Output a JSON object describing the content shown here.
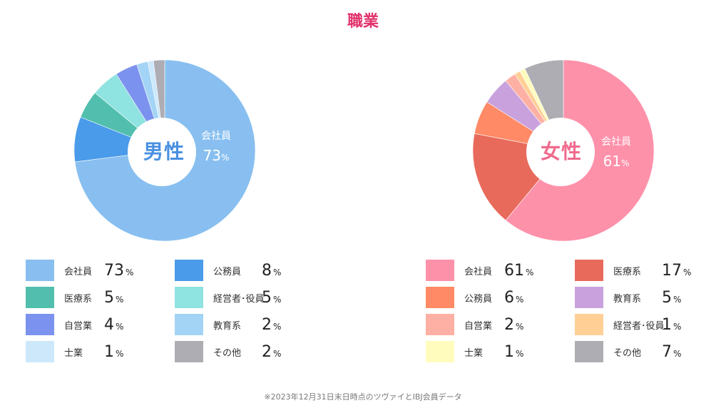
{
  "page": {
    "title": "職業",
    "footnote": "※2023年12月31日末日時点のツヴァイとIBJ会員データ"
  },
  "chart_data": [
    {
      "type": "pie",
      "center_label": "男性",
      "center_color": "#4a90e2",
      "callout": {
        "name": "会社員",
        "value": "73",
        "unit": "%"
      },
      "slices": [
        {
          "name": "会社員",
          "value": 73,
          "unit": "%",
          "color": "#88bff0"
        },
        {
          "name": "公務員",
          "value": 8,
          "unit": "%",
          "color": "#4a9bea"
        },
        {
          "name": "医療系",
          "value": 5,
          "unit": "%",
          "color": "#52bfae"
        },
        {
          "name": "経営者･役員",
          "value": 5,
          "unit": "%",
          "color": "#8fe3e0"
        },
        {
          "name": "自営業",
          "value": 4,
          "unit": "%",
          "color": "#7b92ee"
        },
        {
          "name": "教育系",
          "value": 2,
          "unit": "%",
          "color": "#a3d4f5"
        },
        {
          "name": "士業",
          "value": 1,
          "unit": "%",
          "color": "#cde8fb"
        },
        {
          "name": "その他",
          "value": 2,
          "unit": "%",
          "color": "#aeadb3"
        }
      ],
      "legend_order": [
        0,
        1,
        2,
        3,
        4,
        5,
        6,
        7
      ]
    },
    {
      "type": "pie",
      "center_label": "女性",
      "center_color": "#f06b8e",
      "callout": {
        "name": "会社員",
        "value": "61",
        "unit": "%"
      },
      "slices": [
        {
          "name": "会社員",
          "value": 61,
          "unit": "%",
          "color": "#fe91aa"
        },
        {
          "name": "医療系",
          "value": 17,
          "unit": "%",
          "color": "#e86a5b"
        },
        {
          "name": "公務員",
          "value": 6,
          "unit": "%",
          "color": "#ff8a65"
        },
        {
          "name": "教育系",
          "value": 5,
          "unit": "%",
          "color": "#c9a2dd"
        },
        {
          "name": "自営業",
          "value": 2,
          "unit": "%",
          "color": "#ffb0a4"
        },
        {
          "name": "経営者･役員",
          "value": 1,
          "unit": "%",
          "color": "#ffcf96"
        },
        {
          "name": "士業",
          "value": 1,
          "unit": "%",
          "color": "#fffcbe"
        },
        {
          "name": "その他",
          "value": 7,
          "unit": "%",
          "color": "#aeadb3"
        }
      ],
      "legend_order": [
        0,
        1,
        2,
        3,
        4,
        5,
        6,
        7
      ]
    }
  ]
}
